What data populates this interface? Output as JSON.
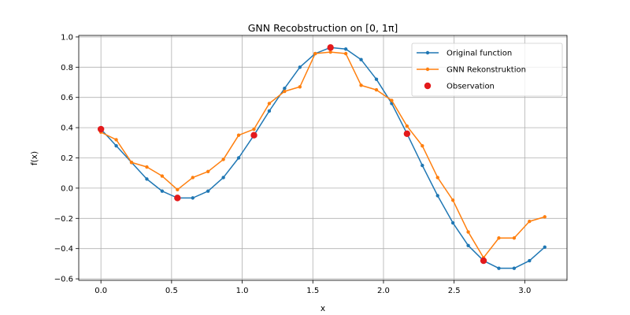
{
  "chart_data": {
    "type": "line",
    "title": "GNN Recobstruction on [0, 1π]",
    "xlabel": "x",
    "ylabel": "f(x)",
    "xlim": [
      -0.157,
      3.299
    ],
    "ylim": [
      -0.61,
      1.01
    ],
    "xticks": [
      0.0,
      0.5,
      1.0,
      1.5,
      2.0,
      2.5,
      3.0
    ],
    "xtick_labels": [
      "0.0",
      "0.5",
      "1.0",
      "1.5",
      "2.0",
      "2.5",
      "3.0"
    ],
    "yticks": [
      -0.6,
      -0.4,
      -0.2,
      0.0,
      0.2,
      0.4,
      0.6,
      0.8,
      1.0
    ],
    "ytick_labels": [
      "−0.6",
      "−0.4",
      "−0.2",
      "0.0",
      "0.2",
      "0.4",
      "0.6",
      "0.8",
      "1.0"
    ],
    "grid": true,
    "legend_position": "top-right",
    "x": [
      0.0,
      0.1083,
      0.2166,
      0.325,
      0.4333,
      0.5416,
      0.65,
      0.7583,
      0.8666,
      0.975,
      1.0833,
      1.1916,
      1.3,
      1.4083,
      1.5166,
      1.625,
      1.7333,
      1.8416,
      1.95,
      2.0583,
      2.1666,
      2.275,
      2.3833,
      2.4916,
      2.6,
      2.7083,
      2.8166,
      2.925,
      3.0333,
      3.1416
    ],
    "series": [
      {
        "name": "Original function",
        "color": "#1f77b4",
        "values": [
          0.39,
          0.28,
          0.17,
          0.06,
          -0.02,
          -0.065,
          -0.065,
          -0.02,
          0.07,
          0.2,
          0.35,
          0.51,
          0.66,
          0.8,
          0.89,
          0.93,
          0.92,
          0.85,
          0.72,
          0.56,
          0.36,
          0.15,
          -0.05,
          -0.23,
          -0.38,
          -0.48,
          -0.53,
          -0.53,
          -0.48,
          -0.39
        ]
      },
      {
        "name": "GNN Rekonstruktion",
        "color": "#ff7f0e",
        "values": [
          0.37,
          0.32,
          0.17,
          0.14,
          0.08,
          -0.01,
          0.07,
          0.11,
          0.19,
          0.35,
          0.39,
          0.56,
          0.64,
          0.67,
          0.89,
          0.9,
          0.89,
          0.68,
          0.65,
          0.58,
          0.41,
          0.28,
          0.07,
          -0.08,
          -0.29,
          -0.46,
          -0.33,
          -0.33,
          -0.22,
          -0.19
        ]
      }
    ],
    "observations": {
      "name": "Observation",
      "color": "#e31a1c",
      "x": [
        0.0,
        0.5416,
        1.0833,
        1.625,
        2.1666,
        2.7083
      ],
      "y": [
        0.39,
        -0.065,
        0.35,
        0.93,
        0.36,
        -0.48
      ]
    }
  }
}
